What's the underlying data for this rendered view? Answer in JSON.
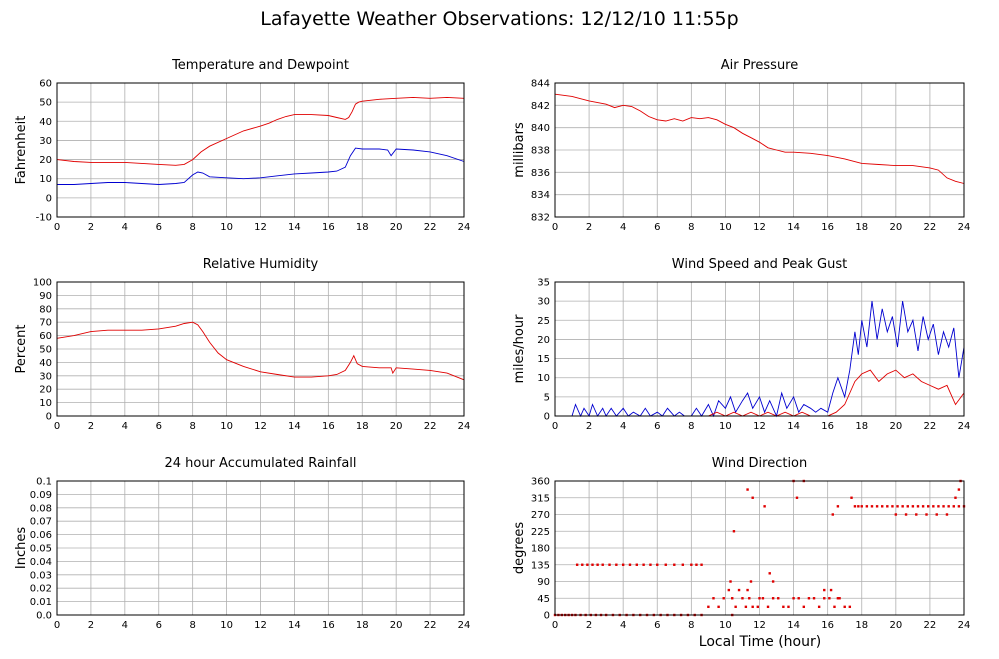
{
  "page": {
    "title": "Lafayette Weather Observations: 12/12/10 11:55p",
    "x_axis_title": "Local Time (hour)"
  },
  "colors": {
    "red": "#e00000",
    "blue": "#0000d0"
  },
  "chart_data": [
    {
      "id": "temperature",
      "type": "line",
      "title": "Temperature and Dewpoint",
      "xlabel": "",
      "ylabel": "Fahrenheit",
      "xlim": [
        0,
        24
      ],
      "ylim": [
        -10,
        60
      ],
      "x_ticks": [
        0,
        2,
        4,
        6,
        8,
        10,
        12,
        14,
        16,
        18,
        20,
        22,
        24
      ],
      "y_ticks": [
        -10,
        0,
        10,
        20,
        30,
        40,
        50,
        60
      ],
      "grid": true,
      "series": [
        {
          "color": "#e00000",
          "x": [
            0,
            1,
            2,
            3,
            4,
            5,
            6,
            7,
            7.5,
            8,
            8.5,
            9,
            10,
            11,
            12,
            12.5,
            13,
            13.5,
            14,
            15,
            16,
            16.5,
            17,
            17.2,
            17.4,
            17.6,
            17.8,
            18,
            19,
            20,
            21,
            22,
            23,
            24
          ],
          "values": [
            20,
            19,
            18.5,
            18.5,
            18.5,
            18,
            17.5,
            17,
            17.5,
            20,
            24,
            27,
            31,
            35,
            37.5,
            39,
            41,
            42.5,
            43.5,
            43.5,
            43,
            42,
            41,
            42,
            45,
            49,
            50,
            50.5,
            51.5,
            52,
            52.5,
            52,
            52.5,
            52
          ]
        },
        {
          "color": "#0000d0",
          "x": [
            0,
            1,
            2,
            3,
            4,
            5,
            6,
            7,
            7.5,
            8,
            8.3,
            8.6,
            9,
            10,
            11,
            12,
            13,
            14,
            15,
            16,
            16.5,
            17,
            17.3,
            17.6,
            18,
            19,
            19.5,
            19.7,
            20,
            21,
            22,
            23,
            24
          ],
          "values": [
            7,
            7,
            7.5,
            8,
            8,
            7.5,
            7,
            7.5,
            8,
            12,
            13.5,
            13,
            11,
            10.5,
            10,
            10.5,
            11.5,
            12.5,
            13,
            13.5,
            14,
            16,
            22,
            26,
            25.5,
            25.5,
            25,
            22,
            25.5,
            25,
            24,
            22,
            19
          ]
        }
      ]
    },
    {
      "id": "pressure",
      "type": "line",
      "title": "Air Pressure",
      "xlabel": "",
      "ylabel": "millibars",
      "xlim": [
        0,
        24
      ],
      "ylim": [
        832,
        844
      ],
      "x_ticks": [
        0,
        2,
        4,
        6,
        8,
        10,
        12,
        14,
        16,
        18,
        20,
        22,
        24
      ],
      "y_ticks": [
        832,
        834,
        836,
        838,
        840,
        842,
        844
      ],
      "grid": true,
      "series": [
        {
          "color": "#e00000",
          "x": [
            0,
            1,
            2,
            3,
            3.5,
            4,
            4.5,
            5,
            5.5,
            6,
            6.5,
            7,
            7.5,
            8,
            8.5,
            9,
            9.5,
            10,
            10.5,
            11,
            11.5,
            12,
            12.5,
            13,
            13.5,
            14,
            15,
            16,
            17,
            17.5,
            18,
            19,
            20,
            21,
            22,
            22.5,
            23,
            23.5,
            24
          ],
          "values": [
            843,
            842.8,
            842.4,
            842.1,
            841.8,
            842,
            841.9,
            841.5,
            841,
            840.7,
            840.6,
            840.8,
            840.6,
            840.9,
            840.8,
            840.9,
            840.7,
            840.3,
            840,
            839.5,
            839.1,
            838.7,
            838.2,
            838,
            837.8,
            837.8,
            837.7,
            837.5,
            837.2,
            837,
            836.8,
            836.7,
            836.6,
            836.6,
            836.4,
            836.2,
            835.5,
            835.2,
            835
          ]
        }
      ]
    },
    {
      "id": "humidity",
      "type": "line",
      "title": "Relative Humidity",
      "xlabel": "",
      "ylabel": "Percent",
      "xlim": [
        0,
        24
      ],
      "ylim": [
        0,
        100
      ],
      "x_ticks": [
        0,
        2,
        4,
        6,
        8,
        10,
        12,
        14,
        16,
        18,
        20,
        22,
        24
      ],
      "y_ticks": [
        0,
        10,
        20,
        30,
        40,
        50,
        60,
        70,
        80,
        90,
        100
      ],
      "grid": true,
      "series": [
        {
          "color": "#e00000",
          "x": [
            0,
            0.5,
            1,
            2,
            3,
            4,
            5,
            6,
            7,
            7.5,
            8,
            8.3,
            8.6,
            9,
            9.5,
            10,
            11,
            12,
            13,
            14,
            15,
            16,
            16.5,
            17,
            17.3,
            17.5,
            17.7,
            18,
            19,
            19.7,
            19.8,
            20,
            21,
            22,
            23,
            24
          ],
          "values": [
            58,
            59,
            60,
            63,
            64,
            64,
            64,
            65,
            67,
            69,
            70,
            68,
            63,
            55,
            47,
            42,
            37,
            33,
            31,
            29,
            29,
            30,
            31,
            34,
            40,
            45,
            39,
            37,
            36,
            36,
            32,
            36,
            35,
            34,
            32,
            27
          ]
        }
      ]
    },
    {
      "id": "wind_speed",
      "type": "line",
      "title": "Wind Speed and Peak Gust",
      "xlabel": "",
      "ylabel": "miles/hour",
      "xlim": [
        0,
        24
      ],
      "ylim": [
        0,
        35
      ],
      "x_ticks": [
        0,
        2,
        4,
        6,
        8,
        10,
        12,
        14,
        16,
        18,
        20,
        22,
        24
      ],
      "y_ticks": [
        0,
        5,
        10,
        15,
        20,
        25,
        30,
        35
      ],
      "grid": true,
      "series": [
        {
          "color": "#0000d0",
          "x": [
            0,
            1,
            1.2,
            1.5,
            1.7,
            2,
            2.2,
            2.5,
            2.8,
            3,
            3.3,
            3.6,
            4,
            4.3,
            4.6,
            5,
            5.3,
            5.6,
            6,
            6.3,
            6.6,
            7,
            7.3,
            7.6,
            8,
            8.3,
            8.6,
            9,
            9.3,
            9.6,
            10,
            10.3,
            10.6,
            11,
            11.3,
            11.6,
            12,
            12.3,
            12.6,
            13,
            13.3,
            13.6,
            14,
            14.3,
            14.6,
            15,
            15.3,
            15.6,
            16,
            16.3,
            16.6,
            17,
            17.3,
            17.6,
            17.8,
            18,
            18.3,
            18.6,
            18.9,
            19.2,
            19.5,
            19.8,
            20.1,
            20.4,
            20.7,
            21,
            21.3,
            21.6,
            21.9,
            22.2,
            22.5,
            22.8,
            23.1,
            23.4,
            23.7,
            24
          ],
          "values": [
            0,
            0,
            3,
            0,
            2,
            0,
            3,
            0,
            2,
            0,
            2,
            0,
            2,
            0,
            1,
            0,
            2,
            0,
            1,
            0,
            2,
            0,
            1,
            0,
            0,
            2,
            0,
            3,
            0,
            4,
            2,
            5,
            1,
            4,
            6,
            2,
            5,
            1,
            4,
            0,
            6,
            2,
            5,
            1,
            3,
            2,
            1,
            2,
            1,
            6,
            10,
            5,
            12,
            22,
            16,
            25,
            18,
            30,
            20,
            28,
            22,
            26,
            18,
            30,
            22,
            25,
            17,
            26,
            20,
            24,
            16,
            22,
            18,
            23,
            10,
            18
          ]
        },
        {
          "color": "#e00000",
          "x": [
            0,
            9,
            9.5,
            10,
            10.5,
            11,
            11.5,
            12,
            12.5,
            13,
            13.5,
            14,
            14.5,
            15,
            15.5,
            16,
            16.5,
            17,
            17.3,
            17.6,
            18,
            18.5,
            19,
            19.5,
            20,
            20.5,
            21,
            21.5,
            22,
            22.5,
            23,
            23.5,
            24
          ],
          "values": [
            0,
            0,
            1,
            0,
            1,
            0,
            1,
            0,
            1,
            0,
            1,
            0,
            1,
            0,
            0,
            0,
            1,
            3,
            6,
            9,
            11,
            12,
            9,
            11,
            12,
            10,
            11,
            9,
            8,
            7,
            8,
            3,
            6
          ]
        }
      ]
    },
    {
      "id": "rainfall",
      "type": "line",
      "title": "24 hour Accumulated Rainfall",
      "xlabel": "",
      "ylabel": "Inches",
      "xlim": [
        0,
        24
      ],
      "ylim": [
        0,
        0.1
      ],
      "x_ticks": [
        0,
        2,
        4,
        6,
        8,
        10,
        12,
        14,
        16,
        18,
        20,
        22,
        24
      ],
      "y_ticks": [
        0,
        0.01,
        0.02,
        0.03,
        0.04,
        0.05,
        0.06,
        0.07,
        0.08,
        0.09,
        0.1
      ],
      "y_tick_labels": [
        "0.0",
        "0.01",
        "0.02",
        "0.03",
        "0.04",
        "0.05",
        "0.06",
        "0.07",
        "0.08",
        "0.09",
        "0.1"
      ],
      "grid": true,
      "series": [
        {
          "color": "#e00000",
          "x": [
            0,
            24
          ],
          "values": [
            0,
            0
          ]
        }
      ]
    },
    {
      "id": "wind_direction",
      "type": "scatter",
      "title": "Wind Direction",
      "xlabel": "Local Time (hour)",
      "ylabel": "degrees",
      "xlim": [
        0,
        24
      ],
      "ylim": [
        0,
        360
      ],
      "x_ticks": [
        0,
        2,
        4,
        6,
        8,
        10,
        12,
        14,
        16,
        18,
        20,
        22,
        24
      ],
      "y_ticks": [
        0,
        45,
        90,
        135,
        180,
        225,
        270,
        315,
        360
      ],
      "grid": true,
      "series": [
        {
          "color": "#e00000",
          "x": [
            0,
            0.2,
            0.4,
            0.6,
            0.8,
            1.0,
            1.2,
            1.5,
            1.8,
            2.1,
            2.4,
            2.7,
            3.0,
            3.4,
            3.8,
            4.2,
            4.6,
            5.0,
            5.4,
            5.8,
            6.2,
            6.6,
            7.0,
            7.4,
            7.8,
            8.2,
            8.6,
            1.3,
            1.6,
            1.9,
            2.2,
            2.5,
            2.8,
            3.2,
            3.6,
            4.0,
            4.4,
            4.8,
            5.2,
            5.6,
            6.0,
            6.5,
            7.0,
            7.5,
            8.0,
            8.3,
            8.6,
            9.0,
            9.3,
            9.6,
            9.9,
            10.2,
            10.4,
            10.6,
            10.8,
            11.0,
            11.2,
            11.4,
            11.6,
            11.9,
            12.2,
            12.5,
            12.8,
            13.1,
            13.4,
            13.7,
            14.0,
            14.3,
            14.6,
            14.9,
            15.2,
            15.5,
            15.8,
            16.1,
            16.4,
            16.7,
            17.0,
            17.3,
            10.3,
            10.5,
            11.3,
            11.5,
            12.0,
            12.6,
            12.8,
            14.0,
            14.2,
            14.6,
            15.8,
            16.2,
            16.6,
            17.4,
            17.6,
            17.8,
            18.0,
            18.3,
            18.6,
            18.9,
            19.2,
            19.5,
            19.8,
            20.1,
            20.4,
            20.7,
            21.0,
            21.3,
            21.6,
            21.9,
            22.2,
            22.5,
            22.8,
            23.1,
            23.4,
            23.7,
            24.0,
            20.0,
            20.6,
            21.2,
            21.8,
            22.4,
            23.0,
            23.5,
            23.7,
            23.8,
            16.3,
            16.6,
            10.4,
            11.3,
            11.6,
            12.3
          ],
          "values": [
            0,
            0,
            0,
            0,
            0,
            0,
            0,
            0,
            0,
            0,
            0,
            0,
            0,
            0,
            0,
            0,
            0,
            0,
            0,
            0,
            0,
            0,
            0,
            0,
            0,
            0,
            0,
            135,
            135,
            135,
            135,
            135,
            135,
            135,
            135,
            135,
            135,
            135,
            135,
            135,
            135,
            135,
            135,
            135,
            135,
            135,
            135,
            22,
            45,
            22,
            45,
            67,
            45,
            22,
            67,
            45,
            22,
            45,
            22,
            22,
            45,
            22,
            45,
            45,
            22,
            22,
            45,
            45,
            22,
            45,
            45,
            22,
            45,
            45,
            22,
            45,
            22,
            22,
            90,
            225,
            67,
            90,
            45,
            112,
            90,
            360,
            315,
            360,
            67,
            67,
            45,
            315,
            292,
            292,
            292,
            292,
            292,
            292,
            292,
            292,
            292,
            292,
            292,
            292,
            292,
            292,
            292,
            292,
            292,
            292,
            292,
            292,
            292,
            292,
            292,
            270,
            270,
            270,
            270,
            270,
            270,
            315,
            337,
            360,
            270,
            292,
            0,
            337,
            315,
            292
          ]
        }
      ]
    }
  ]
}
